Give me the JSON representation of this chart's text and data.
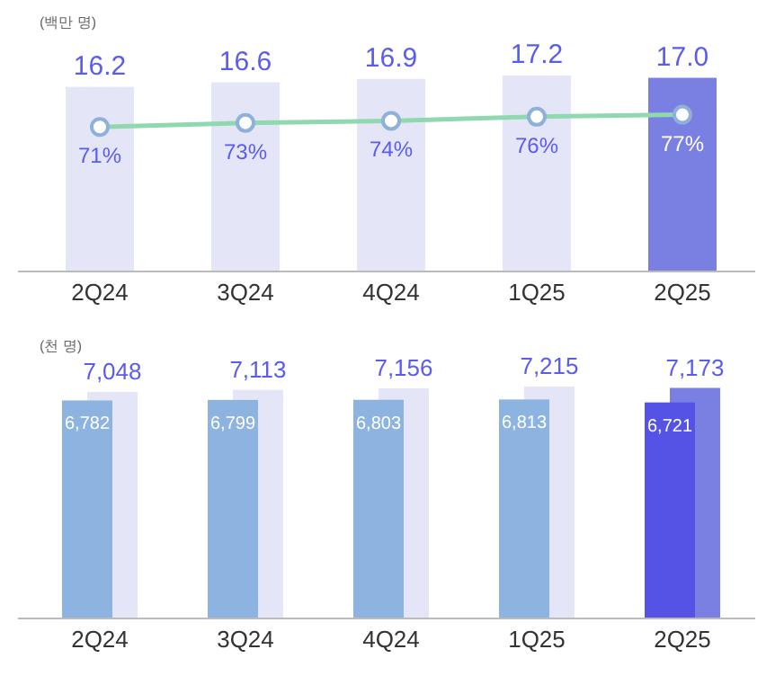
{
  "chart_data": [
    {
      "type": "bar",
      "ylabel": "(백만 명)",
      "categories": [
        "2Q24",
        "3Q24",
        "4Q24",
        "1Q25",
        "2Q25"
      ],
      "tick_labels": "x",
      "grid": false,
      "series": [
        {
          "colors": [
            "#e4e5f7",
            "#e4e5f7",
            "#e4e5f7",
            "#e4e5f7",
            "#7a80e2"
          ],
          "values": [
            16.2,
            16.6,
            16.9,
            17.2,
            17.0
          ],
          "value_labels": [
            "16.2",
            "16.6",
            "16.9",
            "17.2",
            "17.0"
          ]
        },
        {
          "type": "line",
          "axis": "y2",
          "color": "#8fd8b0",
          "marker": "circle",
          "values": [
            71,
            73,
            74,
            76,
            77
          ],
          "value_labels": [
            "71%",
            "73%",
            "74%",
            "76%",
            "77%"
          ]
        }
      ]
    },
    {
      "type": "bar",
      "ylabel": "(천 명)",
      "categories": [
        "2Q24",
        "3Q24",
        "4Q24",
        "1Q25",
        "2Q25"
      ],
      "tick_labels": "x",
      "grid": false,
      "series": [
        {
          "colors": [
            "#8db4e0",
            "#8db4e0",
            "#8db4e0",
            "#8db4e0",
            "#5553e6"
          ],
          "values": [
            6782,
            6799,
            6803,
            6813,
            6721
          ],
          "value_labels": [
            "6,782",
            "6,799",
            "6,803",
            "6,813",
            "6,721"
          ]
        },
        {
          "colors": [
            "#e4e5f7",
            "#e4e5f7",
            "#e4e5f7",
            "#e4e5f7",
            "#7a80e2"
          ],
          "values": [
            7048,
            7113,
            7156,
            7215,
            7173
          ],
          "value_labels": [
            "7,048",
            "7,113",
            "7,156",
            "7,215",
            "7,173"
          ]
        }
      ]
    }
  ]
}
